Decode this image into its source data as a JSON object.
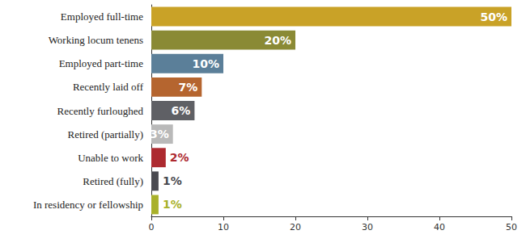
{
  "chart_data": {
    "type": "bar",
    "orientation": "horizontal",
    "categories": [
      "Employed full-time",
      "Working locum tenens",
      "Employed part-time",
      "Recently laid off",
      "Recently furloughed",
      "Retired (partially)",
      "Unable to work",
      "Retired (fully)",
      "In residency or fellowship"
    ],
    "values": [
      50,
      20,
      10,
      7,
      6,
      3,
      2,
      1,
      1
    ],
    "value_labels": [
      "50%",
      "20%",
      "10%",
      "7%",
      "6%",
      "3%",
      "2%",
      "1%",
      "1%"
    ],
    "colors": [
      "#c9a227",
      "#8a8a35",
      "#5b7f99",
      "#b5652f",
      "#5f6065",
      "#b9b9b9",
      "#ad2a30",
      "#4a4a50",
      "#a9b12b"
    ],
    "xlim": [
      0,
      50
    ],
    "xticks": [
      0,
      10,
      20,
      30,
      40,
      50
    ],
    "data_labels": true,
    "grid": false
  }
}
